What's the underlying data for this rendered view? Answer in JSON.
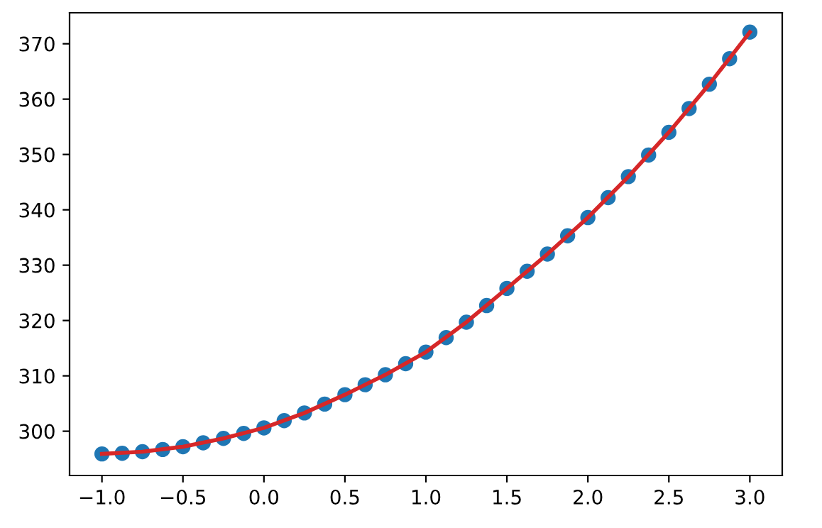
{
  "chart_data": {
    "type": "scatter",
    "xlim": [
      -1.2,
      3.2
    ],
    "ylim": [
      292,
      375.6
    ],
    "xticks": [
      {
        "value": -1,
        "label": "−1.0"
      },
      {
        "value": -0.5,
        "label": "−0.5"
      },
      {
        "value": 0,
        "label": "0.0"
      },
      {
        "value": 0.5,
        "label": "0.5"
      },
      {
        "value": 1,
        "label": "1.0"
      },
      {
        "value": 1.5,
        "label": "1.5"
      },
      {
        "value": 2,
        "label": "2.0"
      },
      {
        "value": 2.5,
        "label": "2.5"
      },
      {
        "value": 3,
        "label": "3.0"
      }
    ],
    "yticks": [
      300,
      310,
      320,
      330,
      340,
      350,
      360,
      370
    ],
    "grid": false,
    "legend": false,
    "series": [
      {
        "marker": "circle",
        "color": "#1f77b4",
        "x": [
          -1,
          -0.875,
          -0.75,
          -0.625,
          -0.5,
          -0.375,
          -0.25,
          -0.125,
          0,
          0.125,
          0.25,
          0.375,
          0.5,
          0.625,
          0.75,
          0.875,
          1,
          1.125,
          1.25,
          1.375,
          1.5,
          1.625,
          1.75,
          1.875,
          2,
          2.125,
          2.25,
          2.375,
          2.5,
          2.625,
          2.75,
          2.875,
          3
        ],
        "values": [
          295.9,
          296.0,
          296.3,
          296.7,
          297.2,
          297.9,
          298.7,
          299.6,
          300.6,
          301.9,
          303.3,
          304.9,
          306.6,
          308.4,
          310.2,
          312.2,
          314.3,
          316.9,
          319.7,
          322.7,
          325.8,
          328.9,
          332.0,
          335.3,
          338.6,
          342.2,
          346.0,
          349.9,
          354.0,
          358.3,
          362.7,
          367.3,
          372.1
        ]
      },
      {
        "type": "line",
        "marker": "none",
        "line_style": "solid",
        "color": "#d62728",
        "x": [
          -1,
          -0.75,
          -0.5,
          -0.25,
          0,
          0.25,
          0.5,
          0.75,
          1,
          1.25,
          1.5,
          1.75,
          2,
          2.25,
          2.5,
          2.75,
          3
        ],
        "values": [
          295.9,
          296.3,
          297.2,
          298.7,
          300.6,
          303.3,
          306.6,
          310.2,
          314.3,
          319.7,
          325.8,
          332.0,
          338.6,
          346.0,
          354.0,
          362.7,
          372.1
        ]
      }
    ]
  }
}
